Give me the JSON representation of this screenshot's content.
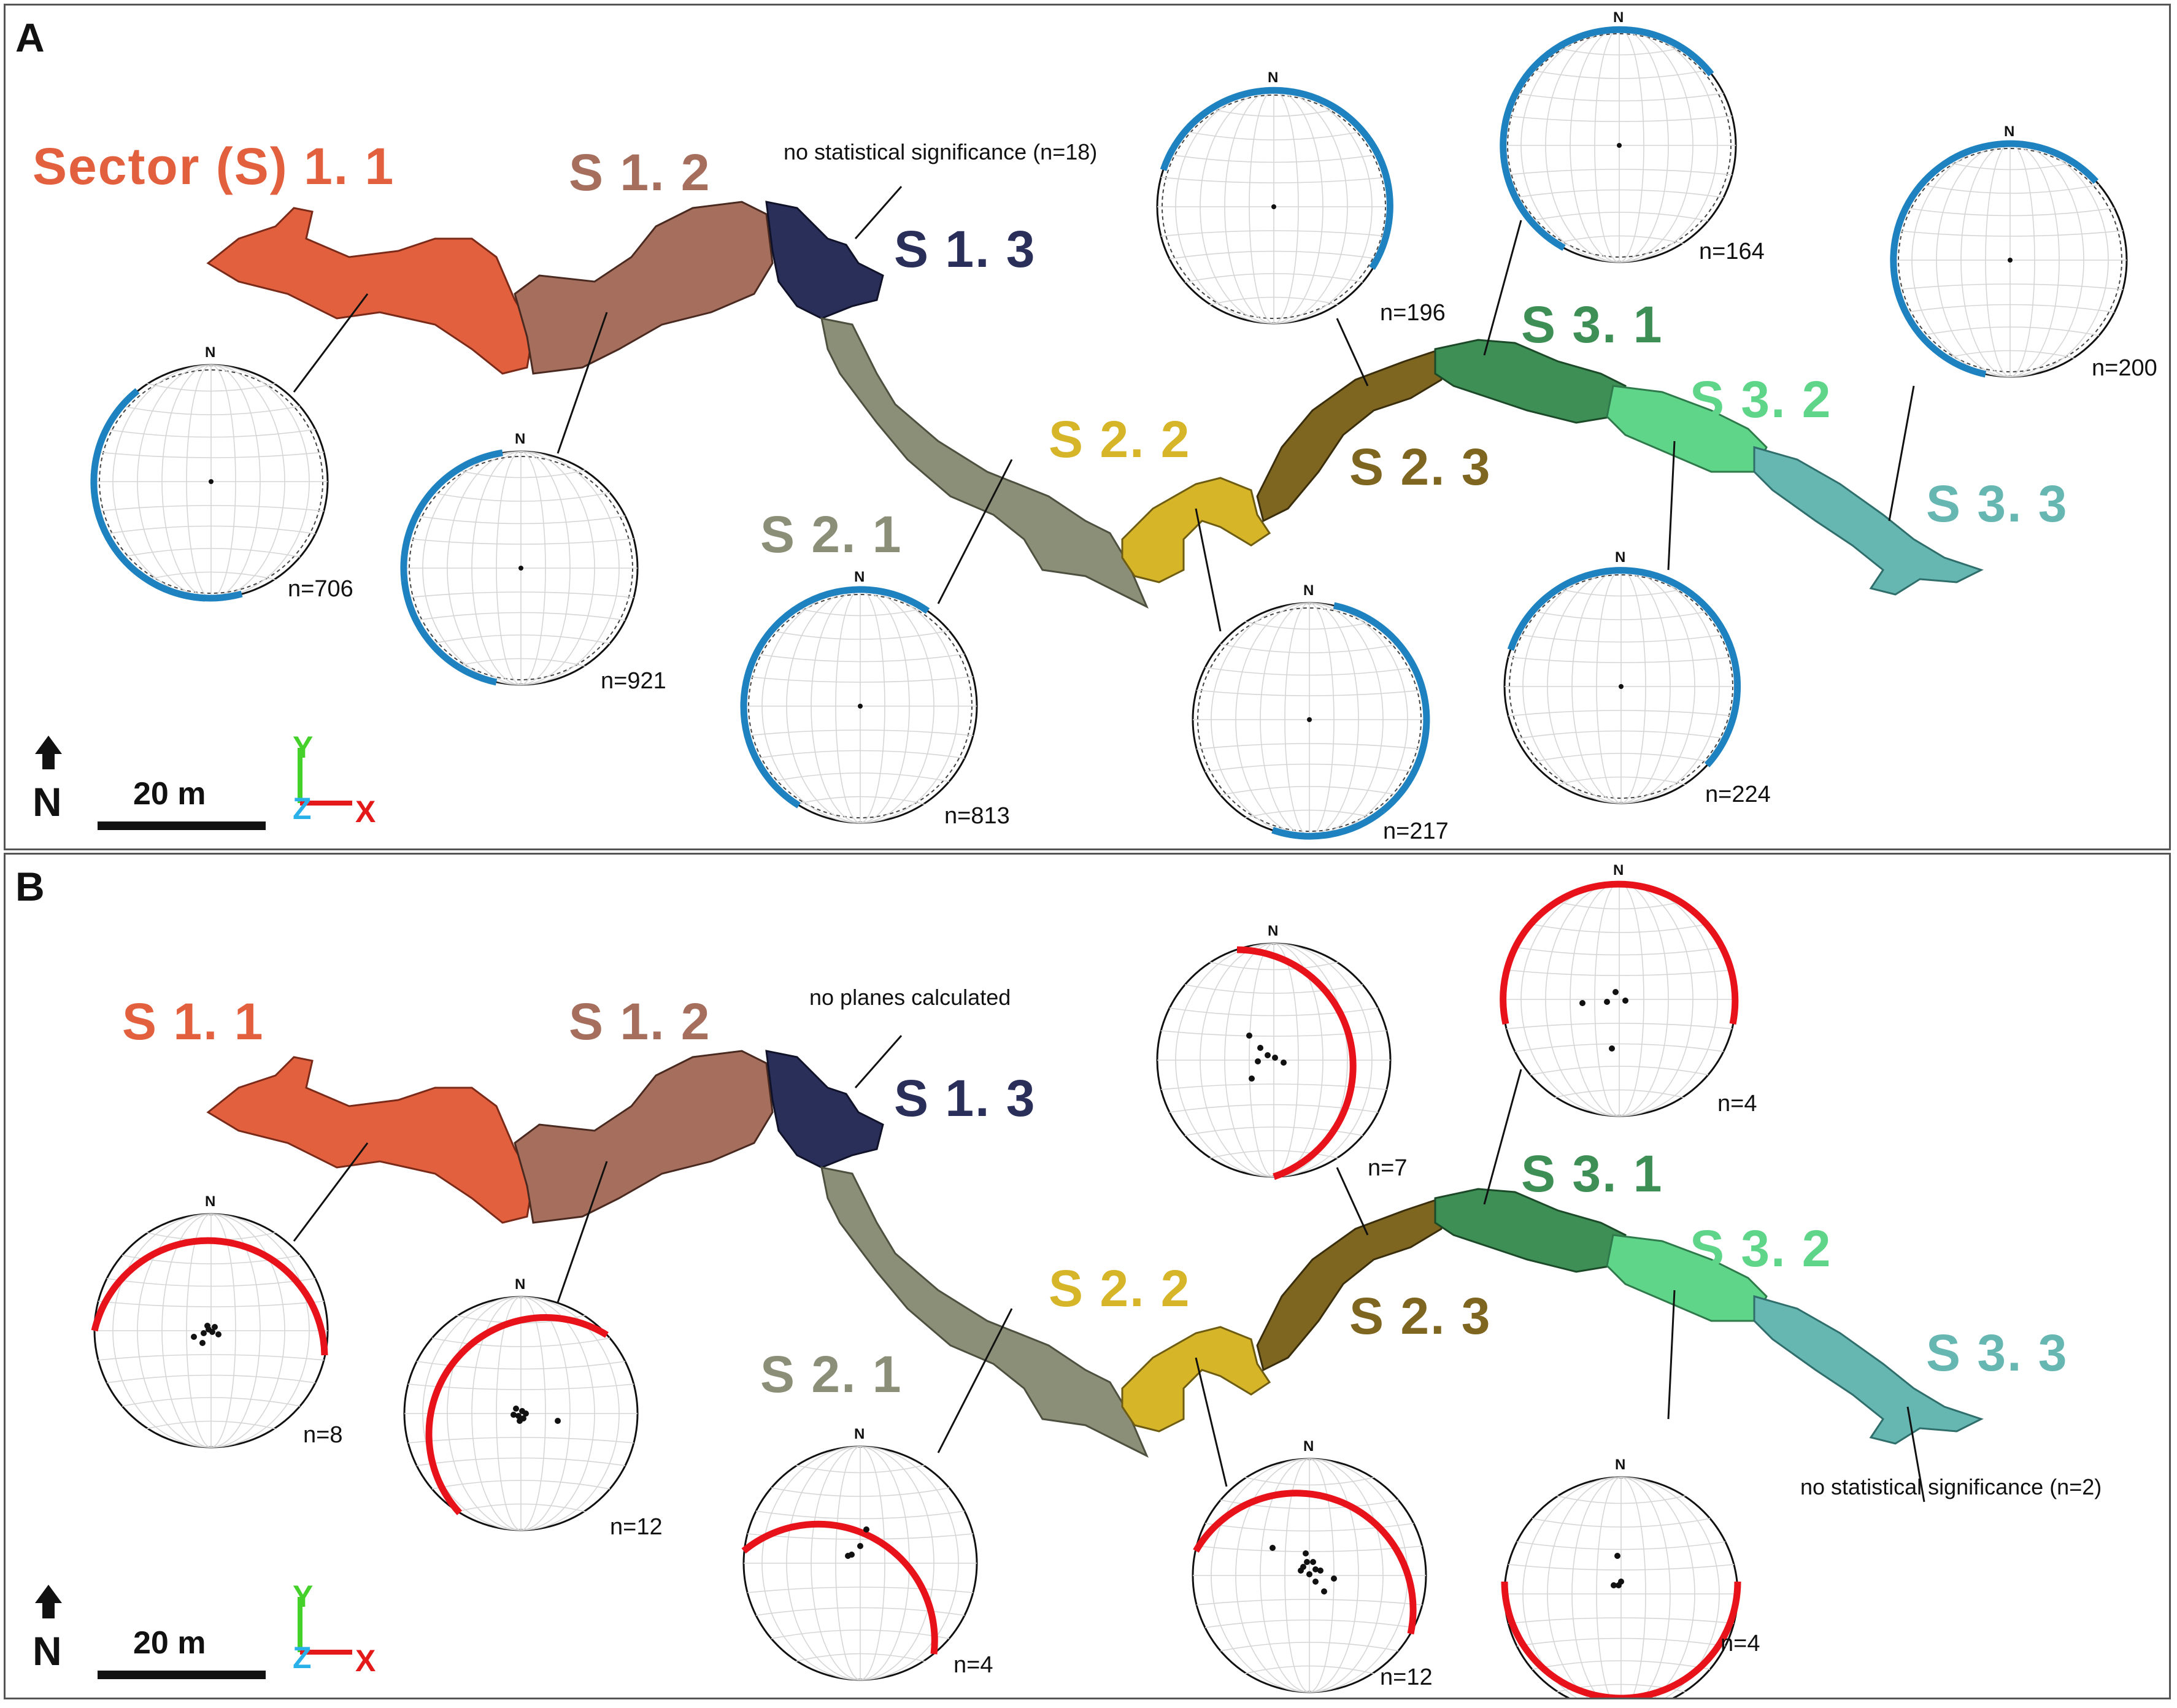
{
  "panels": [
    {
      "letter": "A",
      "arc_color": "#1f82c0",
      "sectors": [
        {
          "label": "Sector (S) 1. 1",
          "color": "#e3603f"
        },
        {
          "label": "S 1. 2",
          "color": "#a66f5d"
        },
        {
          "label": "S 1. 3",
          "color": "#2a2f5a"
        },
        {
          "label": "S 2. 1",
          "color": "#8c8f78"
        },
        {
          "label": "S 2. 2",
          "color": "#d6b529"
        },
        {
          "label": "S 2. 3",
          "color": "#7e6520"
        },
        {
          "label": "S 3. 1",
          "color": "#3d8f55"
        },
        {
          "label": "S 3. 2",
          "color": "#5fd58a"
        },
        {
          "label": "S 3. 3",
          "color": "#66b6b2"
        }
      ],
      "stereonets": [
        {
          "north": "N",
          "n": "n=706"
        },
        {
          "north": "N",
          "n": "n=921"
        },
        {
          "north": "N",
          "n": "n=813"
        },
        {
          "north": "N",
          "n": "n=217"
        },
        {
          "north": "N",
          "n": "n=196"
        },
        {
          "north": "N",
          "n": "n=164"
        },
        {
          "north": "N",
          "n": "n=224"
        },
        {
          "north": "N",
          "n": "n=200"
        }
      ],
      "note": "no statistical significance (n=18)",
      "legend": {
        "north": "N",
        "scale": "20 m",
        "y": "Y",
        "z": "Z",
        "x": "X"
      }
    },
    {
      "letter": "B",
      "arc_color": "#e8121a",
      "sectors": [
        {
          "label": "S 1. 1",
          "color": "#e3603f"
        },
        {
          "label": "S 1. 2",
          "color": "#a66f5d"
        },
        {
          "label": "S 1. 3",
          "color": "#2a2f5a"
        },
        {
          "label": "S 2. 1",
          "color": "#8c8f78"
        },
        {
          "label": "S 2. 2",
          "color": "#d6b529"
        },
        {
          "label": "S 2. 3",
          "color": "#7e6520"
        },
        {
          "label": "S 3. 1",
          "color": "#3d8f55"
        },
        {
          "label": "S 3. 2",
          "color": "#5fd58a"
        },
        {
          "label": "S 3. 3",
          "color": "#66b6b2"
        }
      ],
      "stereonets": [
        {
          "north": "N",
          "n": "n=8"
        },
        {
          "north": "N",
          "n": "n=12"
        },
        {
          "north": "N",
          "n": "n=4"
        },
        {
          "north": "N",
          "n": "n=12"
        },
        {
          "north": "N",
          "n": "n=7"
        },
        {
          "north": "N",
          "n": "n=4"
        },
        {
          "north": "N",
          "n": "n=4"
        }
      ],
      "note_planes": "no planes calculated",
      "note": "no statistical significance (n=2)",
      "legend": {
        "north": "N",
        "scale": "20 m",
        "y": "Y",
        "z": "Z",
        "x": "X"
      }
    }
  ]
}
